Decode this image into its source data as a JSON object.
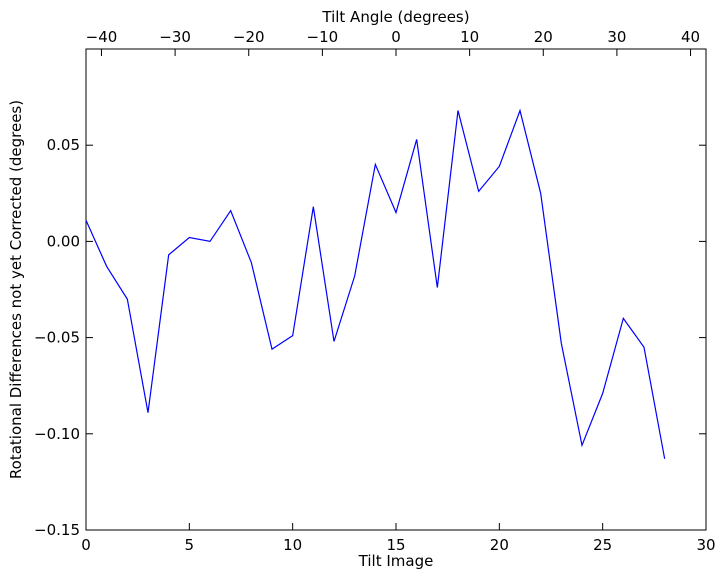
{
  "chart_data": {
    "type": "line",
    "xlabel": "Tilt Image",
    "ylabel": "Rotational Differences not yet Corrected (degrees)",
    "top_xlabel": "Tilt Angle (degrees)",
    "xlim": [
      0,
      30
    ],
    "ylim": [
      -0.15,
      0.1
    ],
    "top_xlim": [
      -42.1,
      42.1
    ],
    "x_ticks": [
      0,
      5,
      10,
      15,
      20,
      25,
      30
    ],
    "x_tick_labels": [
      "0",
      "5",
      "10",
      "15",
      "20",
      "25",
      "30"
    ],
    "y_ticks": [
      -0.15,
      -0.1,
      -0.05,
      0.0,
      0.05
    ],
    "y_tick_labels": [
      "−0.15",
      "−0.10",
      "−0.05",
      "0.00",
      "0.05"
    ],
    "top_ticks": [
      -40,
      -30,
      -20,
      -10,
      0,
      10,
      20,
      30,
      40
    ],
    "top_tick_labels": [
      "−40",
      "−30",
      "−20",
      "−10",
      "0",
      "10",
      "20",
      "30",
      "40"
    ],
    "grid": false,
    "series": [
      {
        "color": "#0000ff",
        "x": [
          0,
          1,
          2,
          3,
          4,
          5,
          6,
          7,
          8,
          9,
          10,
          11,
          12,
          13,
          14,
          15,
          16,
          17,
          18,
          19,
          20,
          21,
          22,
          23,
          24,
          25,
          26,
          27,
          28
        ],
        "y": [
          0.011,
          -0.013,
          -0.03,
          -0.089,
          -0.007,
          0.002,
          0.0,
          0.016,
          -0.011,
          -0.056,
          -0.049,
          0.018,
          -0.052,
          -0.018,
          0.04,
          0.015,
          0.053,
          -0.024,
          0.068,
          0.026,
          0.039,
          0.068,
          0.025,
          -0.053,
          -0.106,
          -0.079,
          -0.04,
          -0.055,
          -0.113
        ]
      }
    ]
  }
}
